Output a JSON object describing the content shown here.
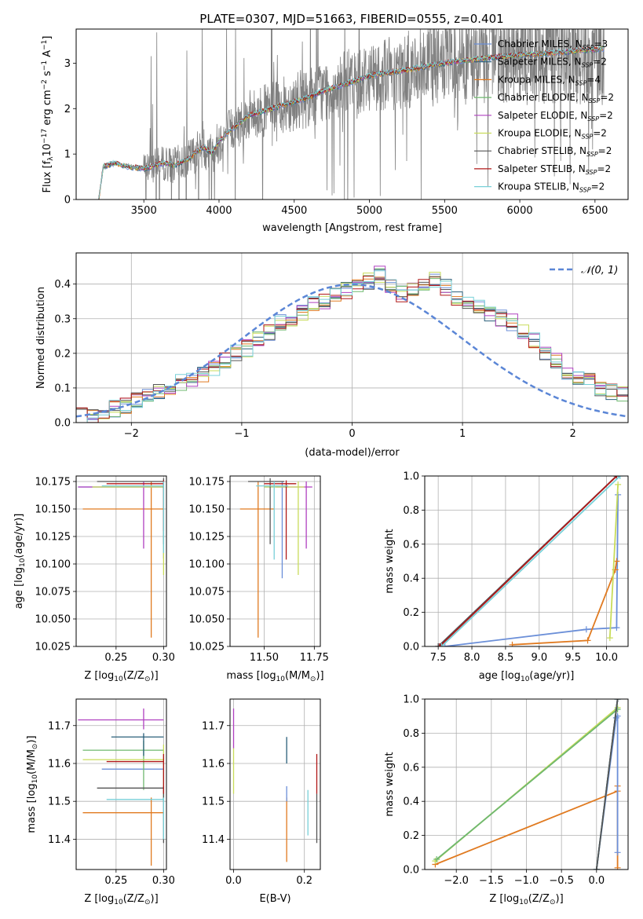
{
  "figure": {
    "title": "PLATE=0307, MJD=51663, FIBERID=0555, z=0.401"
  },
  "colors": {
    "chabrier_miles": "#6b8fd8",
    "salpeter_miles": "#2a5f7a",
    "kroupa_miles": "#e07a20",
    "chabrier_elodie": "#6fb86f",
    "salpeter_elodie": "#b040c0",
    "kroupa_elodie": "#c8dc5a",
    "chabrier_stelib": "#555555",
    "salpeter_stelib": "#b01818",
    "kroupa_stelib": "#78d0d8",
    "observed": "#808080",
    "normal_curve": "#5b86d6"
  },
  "chart_data": [
    {
      "id": "spectrum",
      "type": "line",
      "xlabel": "wavelength [Angstrom, rest frame]",
      "ylabel_parts": [
        "Flux [f",
        "λ",
        "10",
        "−17",
        " erg cm",
        "−2",
        " s",
        "−1",
        " A",
        "−1",
        "]"
      ],
      "xlim": [
        3050,
        6720
      ],
      "ylim": [
        0,
        3.75
      ],
      "xticks": [
        3500,
        4000,
        4500,
        5000,
        5500,
        6000,
        6500
      ],
      "yticks": [
        0,
        1,
        2,
        3
      ],
      "legend_position": "upper right",
      "legend": [
        {
          "model": "Chabrier MILES",
          "nssp": "3",
          "color_key": "chabrier_miles"
        },
        {
          "model": "Salpeter MILES",
          "nssp": "2",
          "color_key": "salpeter_miles"
        },
        {
          "model": "Kroupa MILES",
          "nssp": "4",
          "color_key": "kroupa_miles"
        },
        {
          "model": "Chabrier ELODIE",
          "nssp": "2",
          "color_key": "chabrier_elodie"
        },
        {
          "model": "Salpeter ELODIE",
          "nssp": "2",
          "color_key": "salpeter_elodie"
        },
        {
          "model": "Kroupa ELODIE",
          "nssp": "2",
          "color_key": "kroupa_elodie"
        },
        {
          "model": "Chabrier STELIB",
          "nssp": "2",
          "color_key": "chabrier_stelib"
        },
        {
          "model": "Salpeter STELIB",
          "nssp": "2",
          "color_key": "salpeter_stelib"
        },
        {
          "model": "Kroupa STELIB",
          "nssp": "2",
          "color_key": "kroupa_stelib"
        }
      ],
      "model_continuum": {
        "x": [
          3200,
          3230,
          3260,
          3300,
          3350,
          3400,
          3450,
          3500,
          3550,
          3600,
          3650,
          3700,
          3750,
          3800,
          3850,
          3900,
          3950,
          4000,
          4050,
          4100,
          4150,
          4200,
          4300,
          4400,
          4500,
          4600,
          4700,
          4800,
          4900,
          5000,
          5100,
          5200,
          5300,
          5400,
          5500,
          5600,
          5700,
          5800,
          5900,
          6000,
          6100,
          6200,
          6300,
          6400,
          6500,
          6550
        ],
        "y": [
          0,
          0.72,
          0.75,
          0.8,
          0.76,
          0.72,
          0.7,
          0.68,
          0.72,
          0.78,
          0.8,
          0.75,
          0.82,
          0.9,
          1.05,
          1.15,
          1.02,
          1.28,
          1.45,
          1.58,
          1.72,
          1.85,
          1.95,
          2.05,
          2.15,
          2.25,
          2.4,
          2.5,
          2.6,
          2.72,
          2.78,
          2.82,
          2.88,
          2.95,
          3.0,
          3.05,
          3.08,
          3.12,
          3.15,
          3.18,
          3.2,
          3.22,
          3.25,
          3.28,
          3.3,
          3.32
        ]
      },
      "observed": {
        "start_x": 3260,
        "end_x": 6560,
        "noise_from_x": 3500
      }
    },
    {
      "id": "residuals",
      "type": "step",
      "xlabel": "(data-model)/error",
      "ylabel": "Normed distribution",
      "xlim": [
        -2.5,
        2.5
      ],
      "ylim": [
        0,
        0.49
      ],
      "xticks": [
        -2,
        -1,
        0,
        1,
        2
      ],
      "yticks": [
        0.0,
        0.1,
        0.2,
        0.3,
        0.4
      ],
      "grid": true,
      "legend_position": "upper right",
      "legend_label": "𝒩(0, 1)",
      "curve": "normal",
      "bin_width": 0.1,
      "series_base": [
        0.018,
        0.022,
        0.03,
        0.04,
        0.05,
        0.065,
        0.075,
        0.09,
        0.1,
        0.115,
        0.13,
        0.14,
        0.16,
        0.18,
        0.2,
        0.215,
        0.24,
        0.26,
        0.29,
        0.3,
        0.32,
        0.34,
        0.35,
        0.37,
        0.38,
        0.39,
        0.41,
        0.43,
        0.4,
        0.37,
        0.38,
        0.4,
        0.41,
        0.39,
        0.36,
        0.34,
        0.33,
        0.31,
        0.3,
        0.29,
        0.26,
        0.24,
        0.2,
        0.18,
        0.15,
        0.13,
        0.12,
        0.1,
        0.09,
        0.08
      ]
    },
    {
      "id": "age_vs_Z",
      "type": "errorbar",
      "xlabel_parts": [
        "Z [log",
        "10",
        "(Z/Z",
        "⊙",
        ")]"
      ],
      "ylabel_parts": [
        "age  [log",
        "10",
        "(age/yr)]"
      ],
      "xlim": [
        0.208,
        0.303
      ],
      "ylim": [
        10.025,
        10.18
      ],
      "xticks": [
        0.25,
        0.3
      ],
      "yticks": [
        10.025,
        10.05,
        10.075,
        10.1,
        10.125,
        10.15,
        10.175
      ],
      "grid": true,
      "points": [
        {
          "color_key": "chabrier_miles",
          "x": 0.3,
          "xlo": 0.21,
          "xhi": 0.3,
          "y": 10.17,
          "ylo": 10.105,
          "yhi": 10.175
        },
        {
          "color_key": "kroupa_miles",
          "x": 0.287,
          "xlo": 0.215,
          "xhi": 0.3,
          "y": 10.15,
          "ylo": 10.033,
          "yhi": 10.175
        },
        {
          "color_key": "salpeter_elodie",
          "x": 0.279,
          "xlo": 0.21,
          "xhi": 0.3,
          "y": 10.17,
          "ylo": 10.114,
          "yhi": 10.175
        },
        {
          "color_key": "kroupa_elodie",
          "x": 0.3,
          "xlo": 0.225,
          "xhi": 0.3,
          "y": 10.17,
          "ylo": 10.09,
          "yhi": 10.175
        },
        {
          "color_key": "chabrier_stelib",
          "x": 0.3,
          "xlo": 0.23,
          "xhi": 0.3,
          "y": 10.175,
          "ylo": 10.118,
          "yhi": 10.178
        },
        {
          "color_key": "salpeter_stelib",
          "x": 0.3,
          "xlo": 0.24,
          "xhi": 0.3,
          "y": 10.173,
          "ylo": 10.13,
          "yhi": 10.176
        },
        {
          "color_key": "kroupa_stelib",
          "x": 0.3,
          "xlo": 0.235,
          "xhi": 0.3,
          "y": 10.171,
          "ylo": 10.11,
          "yhi": 10.175
        }
      ]
    },
    {
      "id": "age_vs_mass",
      "type": "errorbar",
      "xlabel_parts": [
        "mass [log",
        "10",
        "(M/M",
        "⊙",
        ")]"
      ],
      "ylabel_parts": [],
      "xlim": [
        11.33,
        11.78
      ],
      "ylim": [
        10.025,
        10.18
      ],
      "xticks": [
        11.5,
        11.75
      ],
      "yticks": [
        10.025,
        10.05,
        10.075,
        10.1,
        10.125,
        10.15,
        10.175
      ],
      "grid": true,
      "points": [
        {
          "color_key": "chabrier_miles",
          "x": 11.59,
          "xlo": 11.5,
          "xhi": 11.62,
          "y": 10.17,
          "ylo": 10.087,
          "yhi": 10.175
        },
        {
          "color_key": "kroupa_miles",
          "x": 11.47,
          "xlo": 11.38,
          "xhi": 11.55,
          "y": 10.15,
          "ylo": 10.033,
          "yhi": 10.175
        },
        {
          "color_key": "salpeter_elodie",
          "x": 11.71,
          "xlo": 11.56,
          "xhi": 11.74,
          "y": 10.17,
          "ylo": 10.114,
          "yhi": 10.175
        },
        {
          "color_key": "kroupa_elodie",
          "x": 11.67,
          "xlo": 11.5,
          "xhi": 11.7,
          "y": 10.17,
          "ylo": 10.09,
          "yhi": 10.175
        },
        {
          "color_key": "chabrier_stelib",
          "x": 11.53,
          "xlo": 11.42,
          "xhi": 11.6,
          "y": 10.175,
          "ylo": 10.118,
          "yhi": 10.178
        },
        {
          "color_key": "salpeter_stelib",
          "x": 11.61,
          "xlo": 11.5,
          "xhi": 11.66,
          "y": 10.173,
          "ylo": 10.104,
          "yhi": 10.176
        },
        {
          "color_key": "kroupa_stelib",
          "x": 11.55,
          "xlo": 11.46,
          "xhi": 11.62,
          "y": 10.171,
          "ylo": 10.104,
          "yhi": 10.175
        }
      ]
    },
    {
      "id": "mass_weight_vs_age",
      "type": "line",
      "xlabel_parts": [
        "age  [log",
        "10",
        "(age/yr)]"
      ],
      "ylabel": "mass weight",
      "xlim": [
        7.3,
        10.32
      ],
      "ylim": [
        0,
        1.0
      ],
      "xticks": [
        7.5,
        8.0,
        8.5,
        9.0,
        9.5,
        10.0
      ],
      "yticks": [
        0.0,
        0.2,
        0.4,
        0.6,
        0.8,
        1.0
      ],
      "grid": true,
      "series": [
        {
          "color_key": "chabrier_miles",
          "x": [
            7.6,
            9.7,
            10.15,
            10.17
          ],
          "y": [
            0.0,
            0.1,
            0.11,
            0.89
          ]
        },
        {
          "color_key": "kroupa_miles",
          "x": [
            8.6,
            9.72,
            10.13,
            10.15
          ],
          "y": [
            0.01,
            0.035,
            0.45,
            0.5
          ]
        },
        {
          "color_key": "kroupa_elodie",
          "x": [
            10.05,
            10.17
          ],
          "y": [
            0.05,
            0.95
          ]
        },
        {
          "color_key": "salpeter_miles",
          "x": [
            7.5,
            10.15
          ],
          "y": [
            0.0,
            1.0
          ]
        },
        {
          "color_key": "chabrier_stelib",
          "x": [
            7.5,
            10.15
          ],
          "y": [
            0.0,
            1.0
          ]
        },
        {
          "color_key": "salpeter_stelib",
          "x": [
            7.52,
            10.15
          ],
          "y": [
            0.0,
            1.0
          ]
        },
        {
          "color_key": "kroupa_stelib",
          "x": [
            7.55,
            10.2
          ],
          "y": [
            0.0,
            1.0
          ]
        }
      ]
    },
    {
      "id": "mass_vs_Z",
      "type": "errorbar",
      "xlabel_parts": [
        "Z [log",
        "10",
        "(Z/Z",
        "⊙",
        ")]"
      ],
      "ylabel_parts": [
        "mass [log",
        "10",
        "(M/M",
        "⊙",
        ")]"
      ],
      "xlim": [
        0.208,
        0.303
      ],
      "ylim": [
        11.32,
        11.77
      ],
      "xticks": [
        0.25,
        0.3
      ],
      "yticks": [
        11.4,
        11.5,
        11.6,
        11.7
      ],
      "grid": true,
      "points": [
        {
          "color_key": "chabrier_miles",
          "x": 0.3,
          "xlo": 0.235,
          "xhi": 0.3,
          "y": 11.585,
          "ylo": 11.5,
          "yhi": 11.6
        },
        {
          "color_key": "kroupa_miles",
          "x": 0.287,
          "xlo": 0.215,
          "xhi": 0.3,
          "y": 11.47,
          "ylo": 11.33,
          "yhi": 11.51
        },
        {
          "color_key": "chabrier_elodie",
          "x": 0.279,
          "xlo": 0.215,
          "xhi": 0.3,
          "y": 11.635,
          "ylo": 11.53,
          "yhi": 11.66
        },
        {
          "color_key": "salpeter_elodie",
          "x": 0.279,
          "xlo": 0.21,
          "xhi": 0.3,
          "y": 11.715,
          "ylo": 11.69,
          "yhi": 11.745
        },
        {
          "color_key": "kroupa_elodie",
          "x": 0.3,
          "xlo": 0.215,
          "xhi": 0.3,
          "y": 11.61,
          "ylo": 11.5,
          "yhi": 11.65
        },
        {
          "color_key": "chabrier_stelib",
          "x": 0.3,
          "xlo": 0.23,
          "xhi": 0.3,
          "y": 11.535,
          "ylo": 11.39,
          "yhi": 11.54
        },
        {
          "color_key": "salpeter_stelib",
          "x": 0.3,
          "xlo": 0.24,
          "xhi": 0.3,
          "y": 11.605,
          "ylo": 11.52,
          "yhi": 11.625
        },
        {
          "color_key": "kroupa_stelib",
          "x": 0.3,
          "xlo": 0.24,
          "xhi": 0.3,
          "y": 11.505,
          "ylo": 11.4,
          "yhi": 11.51
        }
      ],
      "extra_points": [
        {
          "color_key": "salpeter_miles",
          "x": 0.279,
          "xlo": 0.245,
          "xhi": 0.3,
          "y": 11.67,
          "ylo": 11.62,
          "yhi": 11.68
        }
      ]
    },
    {
      "id": "mass_vs_ebv",
      "type": "errorbar",
      "xlabel": "E(B-V)",
      "ylabel_parts": [],
      "xlim": [
        -0.01,
        0.245
      ],
      "ylim": [
        11.32,
        11.77
      ],
      "xticks": [
        0.0,
        0.2
      ],
      "yticks": [
        11.4,
        11.5,
        11.6,
        11.7
      ],
      "grid": true,
      "points": [
        {
          "color_key": "salpeter_elodie",
          "x": 0.0,
          "y": 11.7,
          "ylo": 11.64,
          "yhi": 11.745
        },
        {
          "color_key": "kroupa_elodie",
          "x": 0.0,
          "y": 11.6,
          "ylo": 11.52,
          "yhi": 11.64
        },
        {
          "color_key": "kroupa_miles",
          "x": 0.15,
          "y": 11.47,
          "ylo": 11.34,
          "yhi": 11.51
        },
        {
          "color_key": "chabrier_miles",
          "x": 0.15,
          "y": 11.52,
          "ylo": 11.5,
          "yhi": 11.54
        },
        {
          "color_key": "salpeter_miles",
          "x": 0.15,
          "y": 11.64,
          "ylo": 11.6,
          "yhi": 11.67
        },
        {
          "color_key": "kroupa_stelib",
          "x": 0.21,
          "y": 11.48,
          "ylo": 11.41,
          "yhi": 11.53
        },
        {
          "color_key": "chabrier_stelib",
          "x": 0.235,
          "y": 11.45,
          "ylo": 11.39,
          "yhi": 11.52
        },
        {
          "color_key": "salpeter_stelib",
          "x": 0.235,
          "y": 11.58,
          "ylo": 11.52,
          "yhi": 11.625
        }
      ]
    },
    {
      "id": "mass_weight_vs_Z",
      "type": "line",
      "xlabel_parts": [
        "Z [log",
        "10",
        "(Z/Z",
        "⊙",
        ")]"
      ],
      "ylabel": "mass weight",
      "xlim": [
        -2.45,
        0.45
      ],
      "ylim": [
        0,
        1.0
      ],
      "xticks": [
        -2.0,
        -1.5,
        -1.0,
        -0.5,
        0.0
      ],
      "yticks": [
        0.0,
        0.2,
        0.4,
        0.6,
        0.8,
        1.0
      ],
      "grid": true,
      "series": [
        {
          "color_key": "kroupa_miles",
          "x": [
            -2.3,
            0.3,
            0.3,
            0.3
          ],
          "y": [
            0.03,
            0.46,
            0.49,
            0.01
          ]
        },
        {
          "color_key": "kroupa_elodie",
          "x": [
            -2.3,
            0.3
          ],
          "y": [
            0.05,
            0.95
          ]
        },
        {
          "color_key": "chabrier_elodie",
          "x": [
            -2.28,
            0.3
          ],
          "y": [
            0.06,
            0.94
          ]
        },
        {
          "color_key": "chabrier_miles",
          "x": [
            0.0,
            0.28,
            0.3,
            0.3
          ],
          "y": [
            0.0,
            0.89,
            0.9,
            0.1
          ]
        },
        {
          "color_key": "kroupa_stelib",
          "x": [
            0.0,
            0.3
          ],
          "y": [
            0.0,
            1.0
          ]
        },
        {
          "color_key": "salpeter_miles",
          "x": [
            0.0,
            0.3
          ],
          "y": [
            0.0,
            1.0
          ]
        },
        {
          "color_key": "chabrier_stelib",
          "x": [
            0.0,
            0.3
          ],
          "y": [
            0.0,
            1.0
          ]
        }
      ]
    }
  ]
}
